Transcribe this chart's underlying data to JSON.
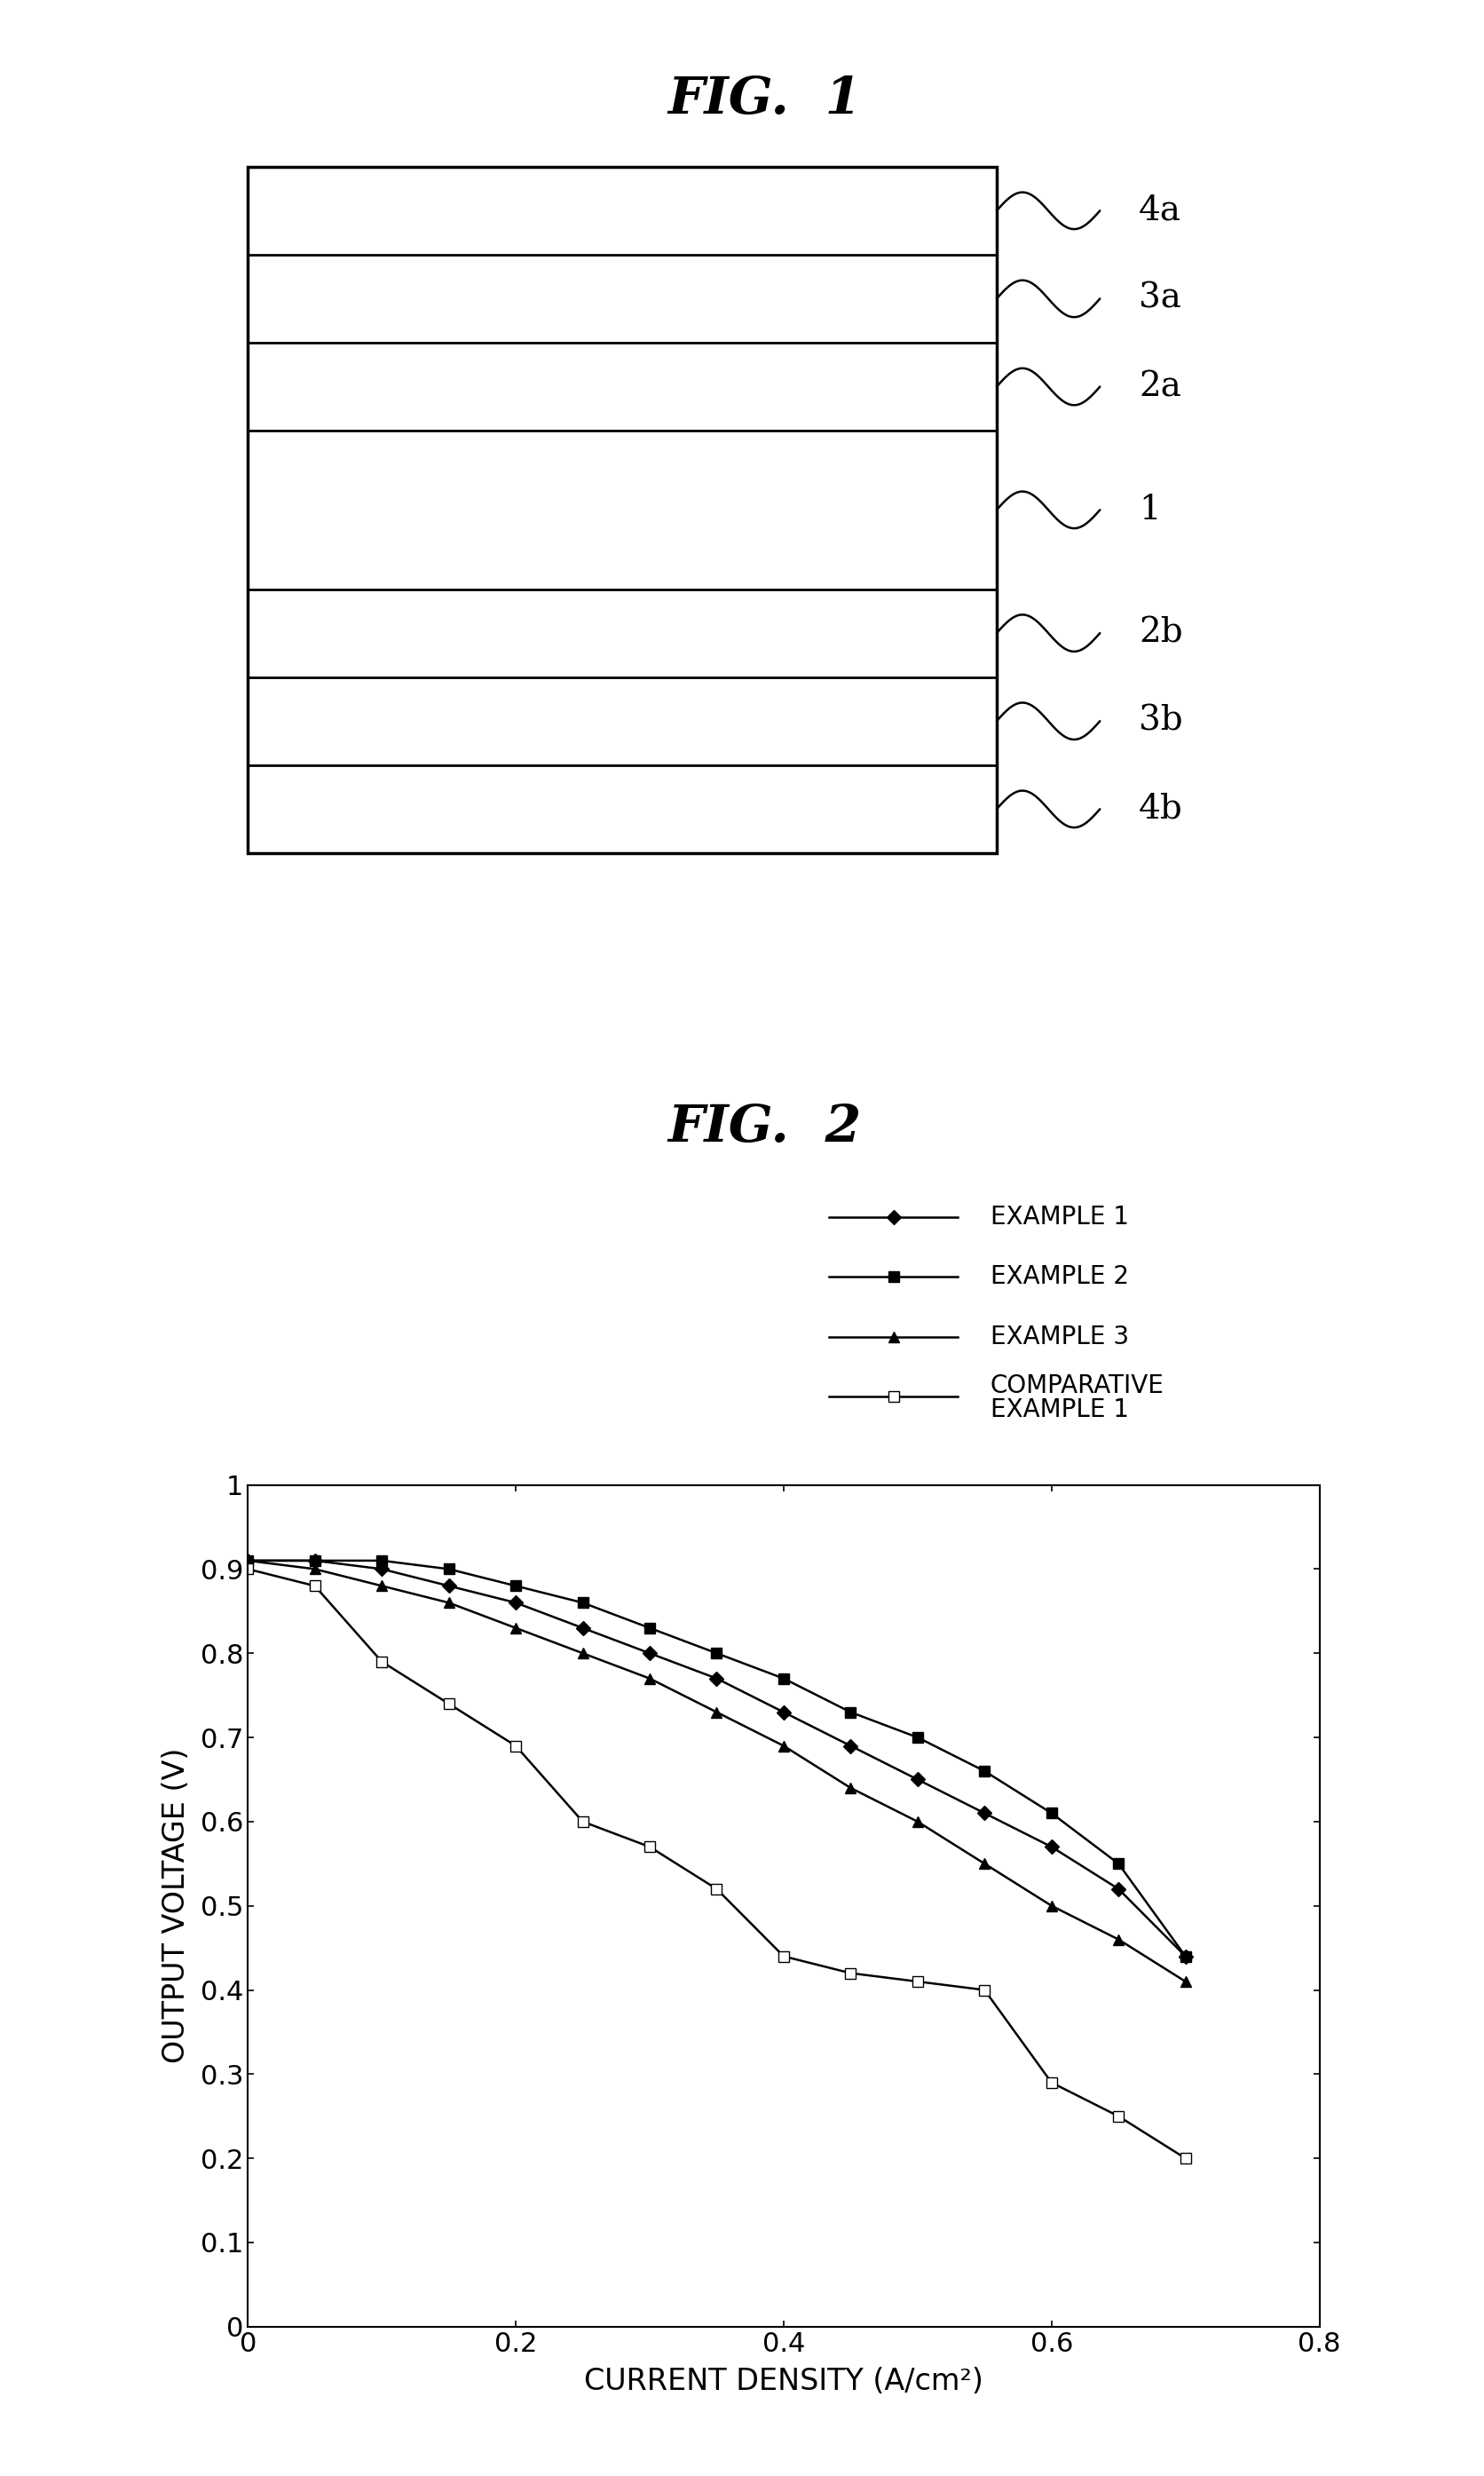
{
  "fig1_title": "FIG.  1",
  "fig2_title": "FIG.  2",
  "fig1_labels": [
    "4a",
    "3a",
    "2a",
    "1",
    "2b",
    "3b",
    "4b"
  ],
  "fig1_layer_heights": [
    1,
    1,
    1,
    1.8,
    1,
    1,
    1
  ],
  "example1_x": [
    0,
    0.05,
    0.1,
    0.15,
    0.2,
    0.25,
    0.3,
    0.35,
    0.4,
    0.45,
    0.5,
    0.55,
    0.6,
    0.65,
    0.7
  ],
  "example1_y": [
    0.91,
    0.91,
    0.9,
    0.88,
    0.86,
    0.83,
    0.8,
    0.77,
    0.73,
    0.69,
    0.65,
    0.61,
    0.57,
    0.52,
    0.44
  ],
  "example2_x": [
    0,
    0.05,
    0.1,
    0.15,
    0.2,
    0.25,
    0.3,
    0.35,
    0.4,
    0.45,
    0.5,
    0.55,
    0.6,
    0.65,
    0.7
  ],
  "example2_y": [
    0.91,
    0.91,
    0.91,
    0.9,
    0.88,
    0.86,
    0.83,
    0.8,
    0.77,
    0.73,
    0.7,
    0.66,
    0.61,
    0.55,
    0.44
  ],
  "example3_x": [
    0,
    0.05,
    0.1,
    0.15,
    0.2,
    0.25,
    0.3,
    0.35,
    0.4,
    0.45,
    0.5,
    0.55,
    0.6,
    0.65,
    0.7
  ],
  "example3_y": [
    0.91,
    0.9,
    0.88,
    0.86,
    0.83,
    0.8,
    0.77,
    0.73,
    0.69,
    0.64,
    0.6,
    0.55,
    0.5,
    0.46,
    0.41
  ],
  "comp_x": [
    0,
    0.05,
    0.1,
    0.15,
    0.2,
    0.25,
    0.3,
    0.35,
    0.4,
    0.45,
    0.5,
    0.55,
    0.6,
    0.65,
    0.7
  ],
  "comp_y": [
    0.9,
    0.88,
    0.79,
    0.74,
    0.69,
    0.6,
    0.57,
    0.52,
    0.44,
    0.42,
    0.41,
    0.4,
    0.29,
    0.25,
    0.2
  ],
  "xlabel": "CURRENT DENSITY (A/cm²)",
  "ylabel": "OUTPUT VOLTAGE (V)",
  "xlim": [
    0,
    0.8
  ],
  "ylim": [
    0,
    1.0
  ],
  "xticks": [
    0,
    0.2,
    0.4,
    0.6,
    0.8
  ],
  "yticks": [
    0,
    0.1,
    0.2,
    0.3,
    0.4,
    0.5,
    0.6,
    0.7,
    0.8,
    0.9,
    1
  ],
  "ytick_labels": [
    "0",
    "0.1",
    "0.2",
    "0.3",
    "0.4",
    "0.5",
    "0.6",
    "0.7",
    "0.8",
    "0.9",
    "1"
  ],
  "xtick_labels": [
    "0",
    "0.2",
    "0.4",
    "0.6",
    "0.8"
  ],
  "legend_labels": [
    "EXAMPLE 1",
    "EXAMPLE 2",
    "EXAMPLE 3",
    "COMPARATIVE\nEXAMPLE 1"
  ],
  "background_color": "#ffffff"
}
